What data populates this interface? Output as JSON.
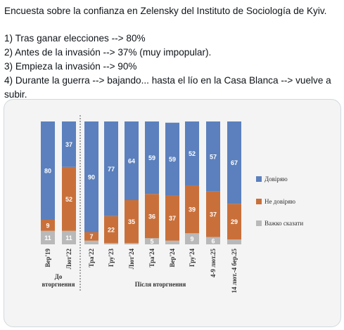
{
  "tweet": {
    "title": "Encuesta sobre la confianza en Zelensky del Instituto de Sociología de Kyiv.",
    "lines": [
      "1) Tras ganar elecciones --> 80%",
      "2) Antes de la invasión --> 37% (muy impopular).",
      "3) Empieza la invasión  --> 90%",
      "4) Durante la guerra --> bajando... hasta el lío en la Casa Blanca --> vuelve a subir."
    ]
  },
  "chart_data": {
    "type": "bar",
    "stacked": true,
    "categories": [
      "Вер'19",
      "Лют'22",
      "Тра'22",
      "Гру'23",
      "Лют'24",
      "Тра'24",
      "Вер'24",
      "Гру'24",
      "4-9 лют.25",
      "14 лют.-4 бер.25"
    ],
    "series": [
      {
        "name": "Довіряю",
        "color": "#5b80bd",
        "values": [
          80,
          37,
          90,
          77,
          64,
          59,
          59,
          52,
          57,
          67
        ]
      },
      {
        "name": "Не довіряю",
        "color": "#c9703a",
        "values": [
          9,
          52,
          7,
          22,
          35,
          36,
          37,
          39,
          37,
          29
        ]
      },
      {
        "name": "Важко сказати",
        "color": "#b9b9b9",
        "values": [
          11,
          11,
          3,
          1,
          1,
          5,
          3,
          9,
          6,
          4
        ]
      }
    ],
    "group_labels": [
      "До вторгнення",
      "Після вторгнення"
    ],
    "ylim": [
      0,
      100
    ],
    "legend_position": "right"
  },
  "colors": {
    "trust": "#5b80bd",
    "distrust": "#c9703a",
    "hard": "#b9b9b9",
    "label_text": "#ffffff"
  }
}
